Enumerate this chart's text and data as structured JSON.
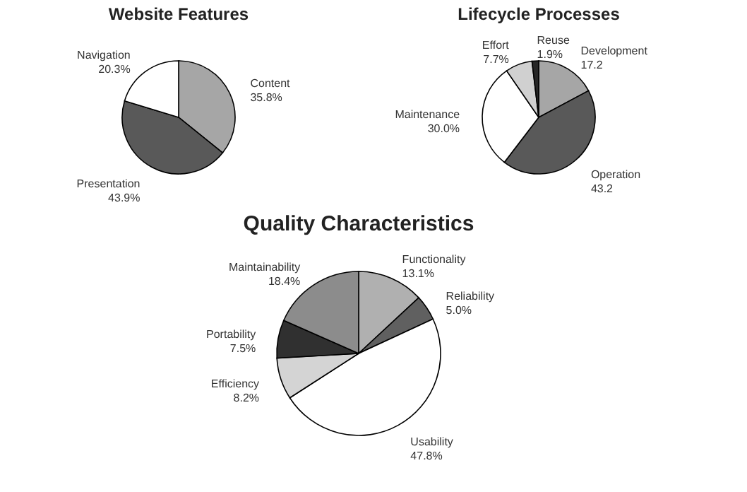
{
  "chart_data": [
    {
      "type": "pie",
      "title": "Website Features",
      "categories": [
        "Content",
        "Presentation",
        "Navigation"
      ],
      "values": [
        35.8,
        43.9,
        20.3
      ],
      "colors": [
        "#a6a6a6",
        "#595959",
        "#ffffff"
      ],
      "value_labels": [
        "35.8%",
        "43.9%",
        "20.3%"
      ]
    },
    {
      "type": "pie",
      "title": "Lifecycle Processes",
      "categories": [
        "Development",
        "Operation",
        "Maintenance",
        "Effort",
        "Reuse"
      ],
      "values": [
        17.2,
        43.2,
        30.0,
        7.7,
        1.9
      ],
      "colors": [
        "#a6a6a6",
        "#595959",
        "#ffffff",
        "#d0d0d0",
        "#262626"
      ],
      "value_labels": [
        "17.2",
        "43.2",
        "30.0%",
        "7.7%",
        "1.9%"
      ]
    },
    {
      "type": "pie",
      "title": "Quality Characteristics",
      "categories": [
        "Functionality",
        "Reliability",
        "Usability",
        "Efficiency",
        "Portability",
        "Maintainability"
      ],
      "values": [
        13.1,
        5.0,
        47.8,
        8.2,
        7.5,
        18.4
      ],
      "colors": [
        "#b0b0b0",
        "#606060",
        "#ffffff",
        "#d4d4d4",
        "#303030",
        "#8c8c8c"
      ],
      "value_labels": [
        "13.1%",
        "5.0%",
        "47.8%",
        "8.2%",
        "7.5%",
        "18.4%"
      ]
    }
  ]
}
